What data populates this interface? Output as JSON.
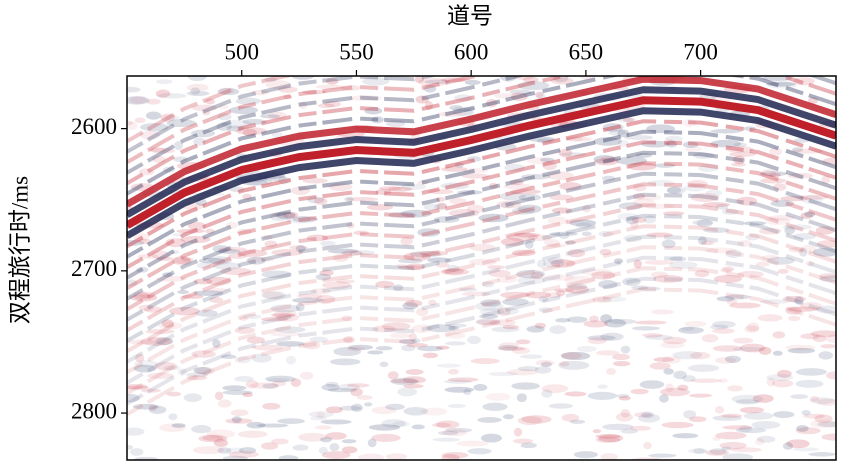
{
  "chart_data": {
    "type": "seismic",
    "title": "道号",
    "ylabel": "双程旅行时/ms",
    "x": [
      450,
      475,
      500,
      525,
      550,
      575,
      600,
      625,
      650,
      675,
      700,
      725,
      759
    ],
    "series": [
      {
        "color": "#c0202a",
        "values": [
          2668,
          2645,
          2629,
          2620,
          2615,
          2617,
          2608,
          2598,
          2589,
          2580,
          2581,
          2587,
          2605
        ]
      }
    ],
    "xlim": [
      450,
      759
    ],
    "xticks": [
      500,
      550,
      600,
      650,
      700
    ],
    "ylim": [
      2563,
      2833
    ],
    "yticks": [
      2600,
      2700,
      2800
    ],
    "y_inverted": true
  }
}
